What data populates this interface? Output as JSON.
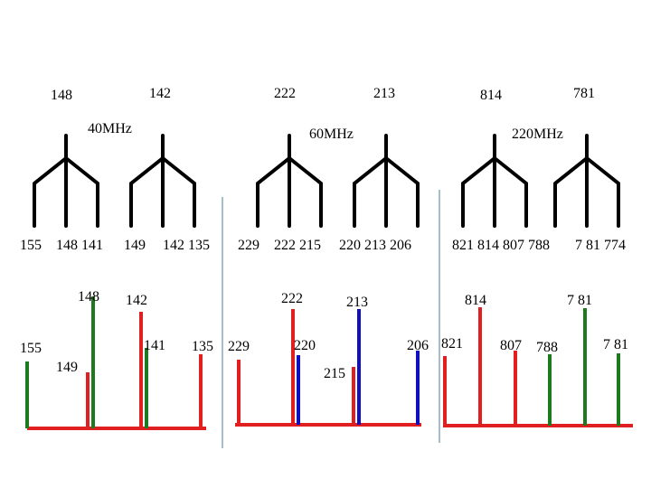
{
  "tree_top_labels": [
    "148",
    "142",
    "222",
    "213",
    "814",
    "781"
  ],
  "tree_freq_labels": [
    "40MHz",
    "60MHz",
    "220MHz"
  ],
  "tree_bottom_labels": [
    "155",
    "148 141",
    "149",
    "142 135",
    "229",
    "222 215",
    "220 213 206",
    "821 814 807 788",
    "7 81 774"
  ],
  "peak_labels": [
    "148",
    "142",
    "155",
    "141",
    "149",
    "135",
    "229",
    "222",
    "213",
    "220",
    "215",
    "206",
    "821",
    "814",
    "7 81",
    "807",
    "788",
    "7 81"
  ],
  "colors": {
    "tree": "#000000",
    "red": "#e02020",
    "green": "#1f7a1f",
    "blue": "#1010c0",
    "divider": "#8aa8b8"
  }
}
